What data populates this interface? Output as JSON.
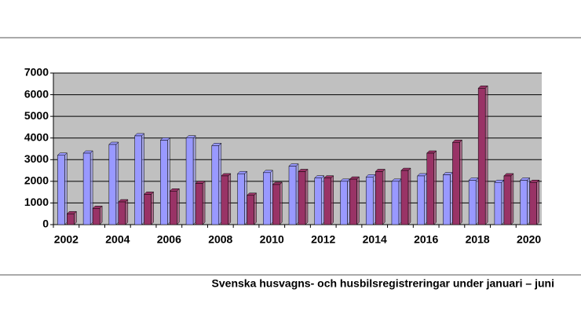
{
  "chart_data": {
    "type": "bar",
    "title": "Svenska husvagns- och husbilsregistreringar under januari – juni",
    "categories": [
      "2002",
      null,
      "2004",
      null,
      "2006",
      null,
      "2008",
      null,
      "2010",
      null,
      "2012",
      null,
      "2014",
      null,
      "2016",
      null,
      "2018",
      null,
      "2020"
    ],
    "series": [
      {
        "color": "#9999ff",
        "values": [
          3200,
          3300,
          3700,
          4100,
          3900,
          4000,
          3650,
          2350,
          2400,
          2700,
          2150,
          2000,
          2200,
          2000,
          2250,
          2300,
          2050,
          1950,
          2050
        ]
      },
      {
        "color": "#993366",
        "values": [
          500,
          750,
          1050,
          1400,
          1550,
          1900,
          2250,
          1350,
          1850,
          2450,
          2150,
          2100,
          2450,
          2500,
          3300,
          3800,
          6300,
          2250,
          1950
        ]
      }
    ],
    "ylim": [
      0,
      7000
    ],
    "yticks": [
      0,
      1000,
      2000,
      3000,
      4000,
      5000,
      6000,
      7000
    ],
    "grid": true
  }
}
